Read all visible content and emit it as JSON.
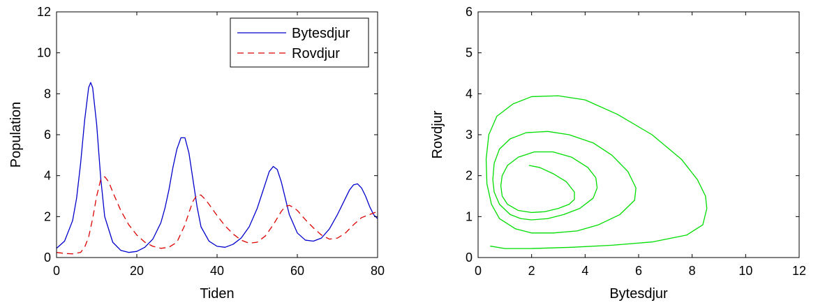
{
  "chart_data": [
    {
      "type": "line",
      "title": "",
      "xlabel": "Tiden",
      "ylabel": "Population",
      "xlim": [
        0,
        80
      ],
      "ylim": [
        0,
        12
      ],
      "xticks": [
        0,
        20,
        40,
        60,
        80
      ],
      "yticks": [
        0,
        2,
        4,
        6,
        8,
        10,
        12
      ],
      "grid": false,
      "legend": "top-right",
      "series": [
        {
          "name": "Bytesdjur",
          "color": "#0000cc",
          "style": "solid",
          "x": [
            0,
            2,
            4,
            5,
            6,
            7,
            8,
            8.5,
            9,
            10,
            11,
            12,
            14,
            16,
            18,
            20,
            22,
            24,
            26,
            27,
            28,
            29,
            30,
            31,
            32,
            33,
            34,
            35,
            36,
            38,
            40,
            42,
            44,
            46,
            48,
            50,
            51,
            52,
            53,
            54,
            55,
            56,
            57,
            58,
            60,
            62,
            64,
            66,
            68,
            70,
            72,
            73,
            74,
            75,
            76,
            77,
            78,
            79,
            80
          ],
          "y": [
            0.45,
            0.8,
            1.8,
            2.9,
            4.6,
            6.7,
            8.3,
            8.55,
            8.3,
            6.5,
            3.9,
            2.0,
            0.75,
            0.35,
            0.25,
            0.3,
            0.5,
            0.9,
            1.7,
            2.4,
            3.3,
            4.4,
            5.3,
            5.85,
            5.85,
            5.1,
            3.8,
            2.5,
            1.5,
            0.8,
            0.55,
            0.5,
            0.65,
            0.95,
            1.5,
            2.4,
            3.0,
            3.6,
            4.2,
            4.45,
            4.3,
            3.7,
            2.9,
            2.1,
            1.2,
            0.85,
            0.8,
            0.95,
            1.4,
            2.1,
            2.9,
            3.3,
            3.55,
            3.6,
            3.4,
            3.0,
            2.5,
            2.1,
            1.9
          ]
        },
        {
          "name": "Rovdjur",
          "color": "#dd0000",
          "style": "dashed",
          "x": [
            0,
            2,
            4,
            6,
            7,
            8,
            9,
            10,
            11,
            12,
            13,
            14,
            16,
            18,
            20,
            22,
            24,
            26,
            28,
            30,
            32,
            33,
            34,
            35,
            36,
            37,
            38,
            40,
            42,
            44,
            46,
            48,
            50,
            52,
            54,
            56,
            57,
            58,
            59,
            60,
            62,
            64,
            66,
            68,
            70,
            72,
            74,
            76,
            78,
            80
          ],
          "y": [
            0.25,
            0.2,
            0.18,
            0.25,
            0.5,
            1.0,
            1.9,
            3.0,
            3.8,
            3.95,
            3.7,
            3.2,
            2.3,
            1.6,
            1.1,
            0.75,
            0.55,
            0.45,
            0.5,
            0.75,
            1.6,
            2.2,
            2.75,
            3.05,
            3.05,
            2.85,
            2.6,
            2.05,
            1.55,
            1.15,
            0.85,
            0.7,
            0.75,
            1.05,
            1.6,
            2.25,
            2.5,
            2.55,
            2.45,
            2.3,
            1.85,
            1.45,
            1.1,
            0.9,
            0.95,
            1.2,
            1.6,
            1.95,
            2.1,
            2.25
          ]
        }
      ]
    },
    {
      "type": "line",
      "title": "",
      "xlabel": "Bytesdjur",
      "ylabel": "Rovdjur",
      "xlim": [
        0,
        12
      ],
      "ylim": [
        0,
        6
      ],
      "xticks": [
        0,
        2,
        4,
        6,
        8,
        10,
        12
      ],
      "yticks": [
        0,
        1,
        2,
        3,
        4,
        5,
        6
      ],
      "grid": false,
      "legend": "none",
      "series": [
        {
          "color": "#00dd00",
          "style": "solid",
          "x": [
            0.45,
            1.0,
            2.0,
            3.5,
            5.0,
            6.5,
            7.8,
            8.4,
            8.55,
            8.5,
            8.2,
            7.6,
            6.5,
            5.2,
            4.0,
            3.0,
            2.0,
            1.3,
            0.7,
            0.4,
            0.3,
            0.33,
            0.5,
            0.8,
            1.4,
            2.0,
            2.8,
            3.7,
            4.5,
            5.3,
            5.85,
            5.9,
            5.6,
            5.0,
            4.3,
            3.4,
            2.6,
            1.8,
            1.2,
            0.8,
            0.6,
            0.55,
            0.6,
            0.8,
            1.2,
            1.6,
            2.0,
            2.6,
            3.2,
            3.8,
            4.3,
            4.45,
            4.4,
            4.1,
            3.5,
            2.8,
            2.1,
            1.5,
            1.1,
            0.9,
            0.85,
            0.9,
            1.1,
            1.5,
            2.0,
            2.5,
            3.0,
            3.4,
            3.6,
            3.6,
            3.3,
            2.8,
            2.3,
            1.9
          ],
          "y": [
            0.28,
            0.22,
            0.22,
            0.25,
            0.3,
            0.38,
            0.55,
            0.8,
            1.2,
            1.5,
            1.9,
            2.4,
            3.0,
            3.5,
            3.85,
            3.95,
            3.93,
            3.75,
            3.45,
            3.0,
            2.4,
            1.8,
            1.3,
            0.95,
            0.7,
            0.6,
            0.6,
            0.65,
            0.8,
            1.05,
            1.4,
            1.7,
            2.1,
            2.5,
            2.8,
            3.0,
            3.08,
            3.05,
            2.9,
            2.65,
            2.3,
            1.9,
            1.6,
            1.3,
            1.05,
            0.95,
            0.92,
            0.95,
            1.05,
            1.2,
            1.45,
            1.7,
            1.95,
            2.2,
            2.45,
            2.58,
            2.58,
            2.45,
            2.25,
            2.0,
            1.75,
            1.5,
            1.3,
            1.15,
            1.1,
            1.12,
            1.2,
            1.3,
            1.42,
            1.6,
            1.85,
            2.05,
            2.2,
            2.25
          ]
        }
      ]
    }
  ]
}
